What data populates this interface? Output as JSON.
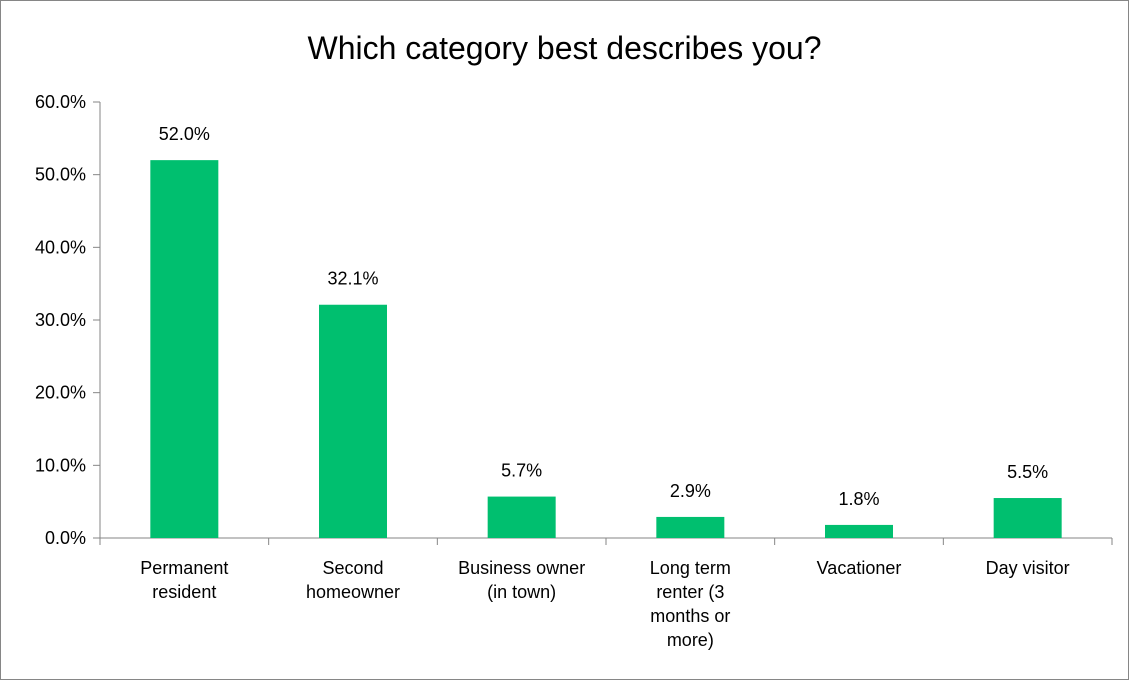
{
  "chart_data": {
    "type": "bar",
    "title": "Which category best describes you?",
    "xlabel": "",
    "ylabel": "",
    "ylim": [
      0,
      60
    ],
    "yticks": [
      "0.0%",
      "10.0%",
      "20.0%",
      "30.0%",
      "40.0%",
      "50.0%",
      "60.0%"
    ],
    "categories": [
      [
        "Permanent",
        "resident"
      ],
      [
        "Second",
        "homeowner"
      ],
      [
        "Business owner",
        "(in town)"
      ],
      [
        "Long term",
        "renter (3",
        "months or",
        "more)"
      ],
      [
        "Vacationer"
      ],
      [
        "Day visitor"
      ]
    ],
    "values": [
      52.0,
      32.1,
      5.7,
      2.9,
      1.8,
      5.5
    ],
    "data_labels": [
      "52.0%",
      "32.1%",
      "5.7%",
      "2.9%",
      "1.8%",
      "5.5%"
    ],
    "bar_color": "#00bf6f",
    "grid": false,
    "legend": "none"
  }
}
